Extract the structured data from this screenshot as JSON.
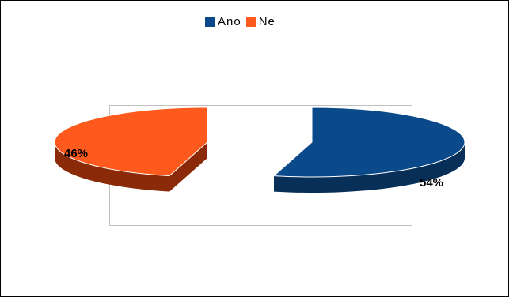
{
  "chart_data": {
    "type": "pie",
    "subtype": "3d-exploded",
    "title": "",
    "categories": [
      "Ano",
      "Ne"
    ],
    "values": [
      54,
      46
    ],
    "unit": "%",
    "data_labels": [
      "54%",
      "46%"
    ],
    "colors": [
      "#0a4a8a",
      "#ff5a1e"
    ],
    "side_colors": [
      "#072f58",
      "#8a2a08"
    ],
    "legend": {
      "position": "top",
      "items": [
        {
          "label": "Ano",
          "color": "#0a4a8a"
        },
        {
          "label": "Ne",
          "color": "#ff5a1e"
        }
      ]
    },
    "grid": false
  }
}
